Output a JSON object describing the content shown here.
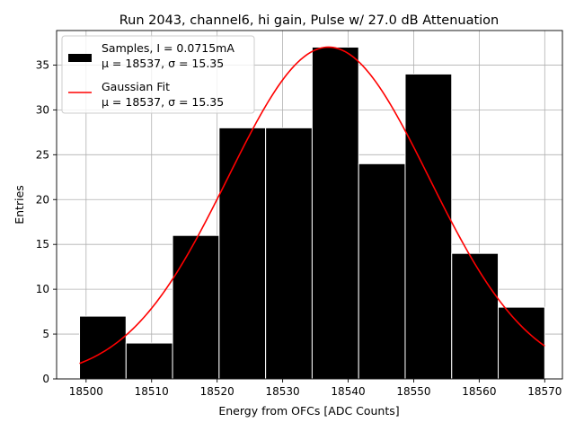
{
  "chart_data": {
    "type": "bar",
    "title": "Run 2043, channel6, hi gain, Pulse w/ 27.0 dB Attenuation",
    "xlabel": "Energy from OFCs [ADC Counts]",
    "ylabel": "Entries",
    "xlim": [
      18495.5,
      18572.7
    ],
    "ylim": [
      0,
      38.85
    ],
    "xticks": [
      18500,
      18510,
      18520,
      18530,
      18540,
      18550,
      18560,
      18570
    ],
    "yticks": [
      0,
      5,
      10,
      15,
      20,
      25,
      30,
      35
    ],
    "grid": true,
    "legend_position": "upper left",
    "histogram": {
      "name": "Samples, I = 0.0715mA",
      "stats": "μ = 18537, σ = 15.35",
      "color": "#000000",
      "bin_edges": [
        18499.0,
        18506.1,
        18513.2,
        18520.3,
        18527.4,
        18534.5,
        18541.6,
        18548.7,
        18555.8,
        18562.9,
        18570.0
      ],
      "counts": [
        7,
        4,
        16,
        28,
        28,
        37,
        24,
        34,
        14,
        8
      ]
    },
    "fit": {
      "name": "Gaussian Fit",
      "stats": "μ = 18537, σ = 15.35",
      "color": "#ff0000",
      "mu": 18537,
      "sigma": 15.35,
      "amplitude": 37.0,
      "x_range": [
        18499,
        18570
      ]
    }
  }
}
